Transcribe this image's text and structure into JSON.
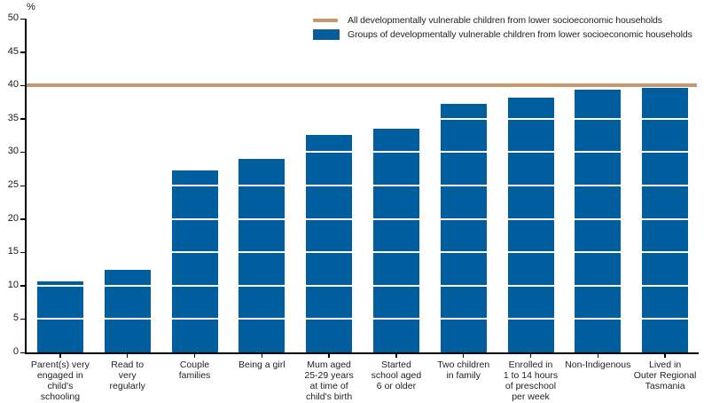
{
  "legend": {
    "items": [
      {
        "swatch": "line",
        "color": "#C49A6C",
        "label": "All developmentally vulnerable children from lower socioeconomic households"
      },
      {
        "swatch": "box",
        "color": "#005D9E",
        "label": "Groups of developmentally vulnerable children from lower socioeconomic households"
      }
    ]
  },
  "chart_data": {
    "type": "bar",
    "title": "",
    "xlabel": "",
    "ylabel": "%",
    "ylim": [
      0,
      50
    ],
    "ytick_interval": 5,
    "yticks": [
      0,
      5,
      10,
      15,
      20,
      25,
      30,
      35,
      40,
      45,
      50
    ],
    "grid": "white gridlines every 5 units drawn over bars",
    "legend_position": "top-right",
    "bar_color": "#005D9E",
    "reference_line": {
      "value": 40,
      "color": "#C49A6C",
      "label": "All developmentally vulnerable children from lower socioeconomic households"
    },
    "categories": [
      {
        "label": "Parent(s) very engaged in child's schooling",
        "lines": [
          "Parent(s) very",
          "engaged in",
          "child's",
          "schooling"
        ]
      },
      {
        "label": "Read to very regularly",
        "lines": [
          "Read to",
          "very",
          "regularly"
        ]
      },
      {
        "label": "Couple families",
        "lines": [
          "Couple",
          "families"
        ]
      },
      {
        "label": "Being a girl",
        "lines": [
          "Being a girl"
        ]
      },
      {
        "label": "Mum aged 25-29 years at time of child's birth",
        "lines": [
          "Mum aged",
          "25-29 years",
          "at time of",
          "child's birth"
        ]
      },
      {
        "label": "Started school aged 6 or older",
        "lines": [
          "Started",
          "school aged",
          "6 or older"
        ]
      },
      {
        "label": "Two children in family",
        "lines": [
          "Two children",
          "in family"
        ]
      },
      {
        "label": "Enrolled in 1 to 14 hours of preschool per week",
        "lines": [
          "Enrolled in",
          "1 to 14 hours",
          "of preschool",
          "per week"
        ]
      },
      {
        "label": "Non-Indigenous",
        "lines": [
          "Non-Indigenous"
        ]
      },
      {
        "label": "Lived in Outer Regional Tasmania",
        "lines": [
          "Lived in",
          "Outer Regional",
          "Tasmania"
        ]
      }
    ],
    "series": [
      {
        "name": "Groups of developmentally vulnerable children from lower socioeconomic households",
        "values": [
          10.7,
          12.4,
          27.2,
          29.0,
          32.6,
          33.5,
          37.3,
          38.1,
          39.4,
          39.6
        ]
      }
    ]
  }
}
